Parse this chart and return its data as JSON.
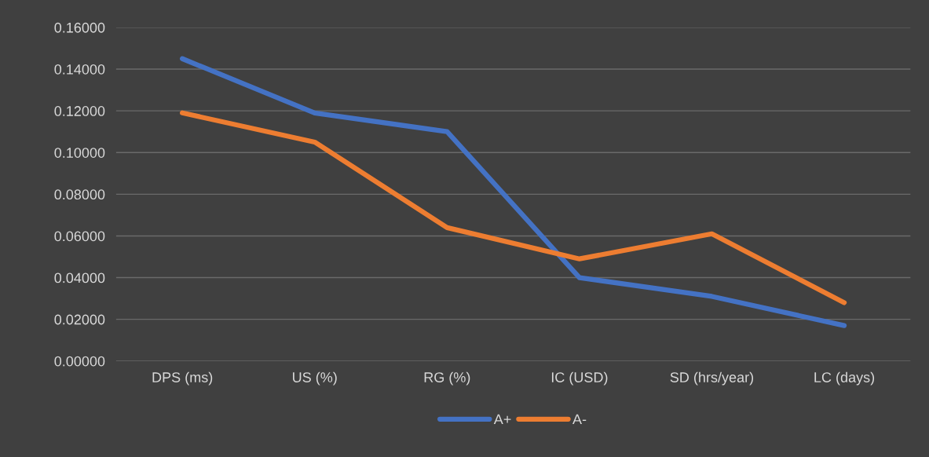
{
  "chart_data": {
    "type": "line",
    "categories": [
      "DPS (ms)",
      "US (%)",
      "RG (%)",
      "IC (USD)",
      "SD (hrs/year)",
      "LC (days)"
    ],
    "series": [
      {
        "name": "A+",
        "color": "#4472c4",
        "values": [
          0.145,
          0.119,
          0.11,
          0.04,
          0.031,
          0.017
        ]
      },
      {
        "name": "A-",
        "color": "#ed7d31",
        "values": [
          0.119,
          0.105,
          0.064,
          0.049,
          0.061,
          0.028
        ]
      }
    ],
    "ylim": [
      0,
      0.16
    ],
    "yticks": [
      {
        "value": 0,
        "label": "0.00000"
      },
      {
        "value": 0.02,
        "label": "0.02000"
      },
      {
        "value": 0.04,
        "label": "0.04000"
      },
      {
        "value": 0.06,
        "label": "0.06000"
      },
      {
        "value": 0.08,
        "label": "0.08000"
      },
      {
        "value": 0.1,
        "label": "0.10000"
      },
      {
        "value": 0.12,
        "label": "0.12000"
      },
      {
        "value": 0.14,
        "label": "0.14000"
      },
      {
        "value": 0.16,
        "label": "0.16000"
      }
    ],
    "grid": "y",
    "legend": "bottom",
    "marker": "none",
    "line_style": "solid"
  }
}
